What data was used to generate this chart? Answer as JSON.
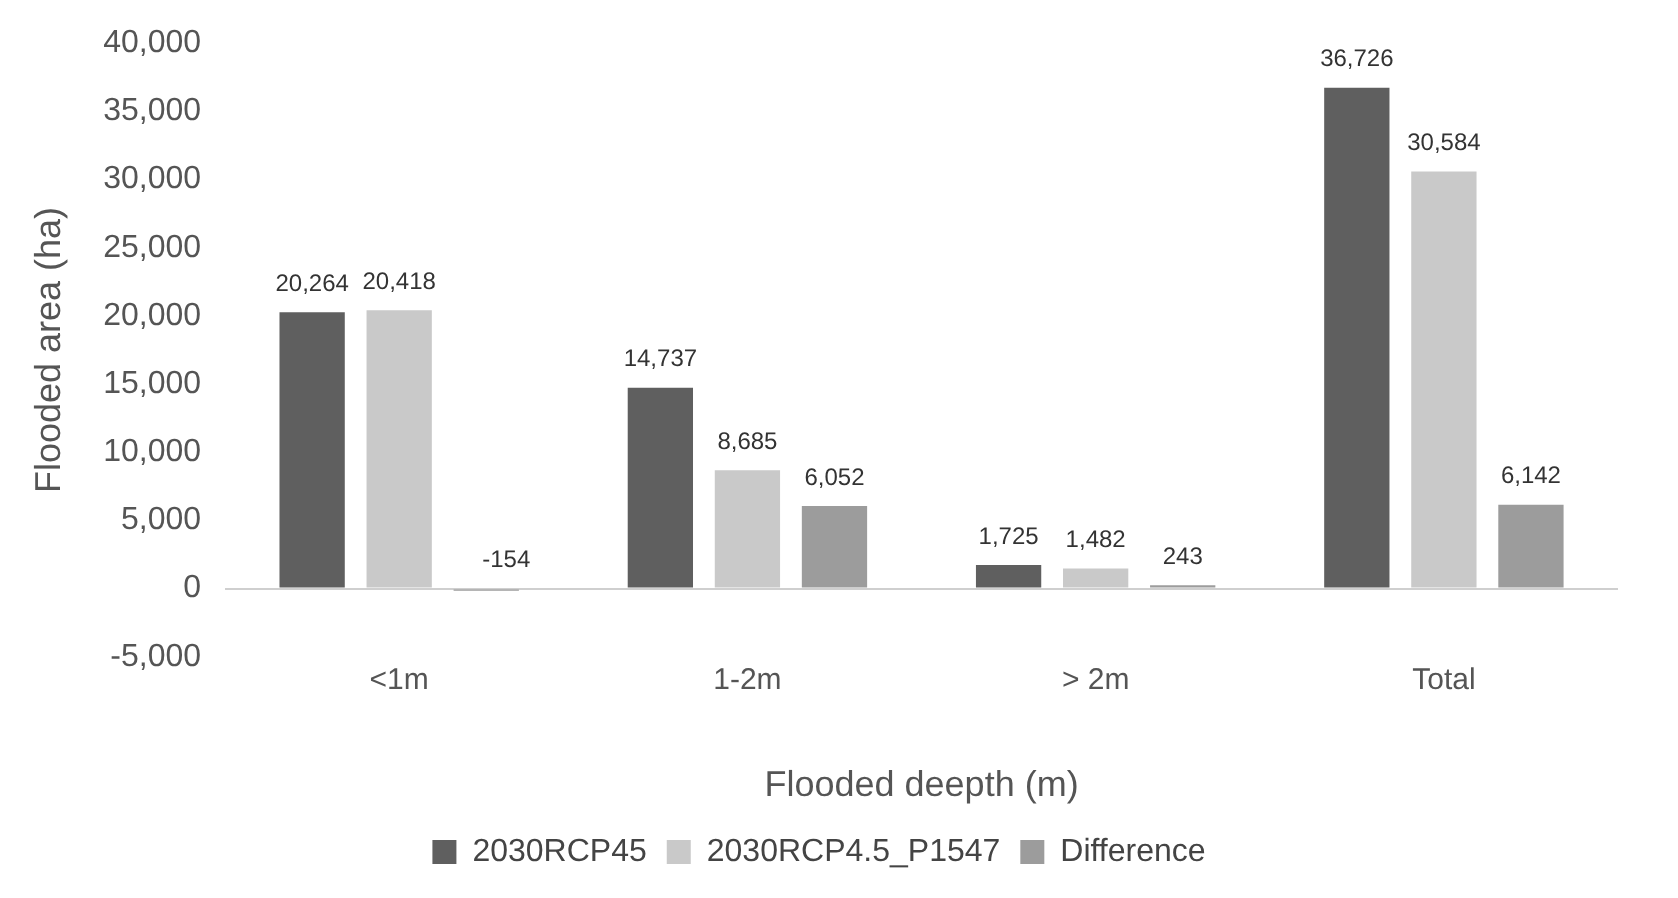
{
  "chart_data": {
    "type": "bar",
    "xlabel": "Flooded deepth (m)",
    "ylabel": "Flooded area (ha)",
    "categories": [
      "<1m",
      "1-2m",
      "> 2m",
      "Total"
    ],
    "series": [
      {
        "name": "2030RCP45",
        "color": "#5f5f5f",
        "values": [
          20264,
          14737,
          1725,
          36726
        ],
        "value_labels": [
          "20,264",
          "14,737",
          "1,725",
          "36,726"
        ]
      },
      {
        "name": "2030RCP4.5_P1547",
        "color": "#c9c9c9",
        "values": [
          20418,
          8685,
          1482,
          30584
        ],
        "value_labels": [
          "20,418",
          "8,685",
          "1,482",
          "30,584"
        ]
      },
      {
        "name": "Difference",
        "color": "#9c9c9c",
        "values": [
          -154,
          6052,
          243,
          6142
        ],
        "value_labels": [
          "-154",
          "6,052",
          "243",
          "6,142"
        ]
      }
    ],
    "ylim": [
      -5000,
      40000
    ],
    "yticks": [
      {
        "value": -5000,
        "label": "-5,000"
      },
      0,
      {
        "value": 5000,
        "label": "5,000"
      },
      {
        "value": 10000,
        "label": "10,000"
      },
      {
        "value": 15000,
        "label": "15,000"
      },
      {
        "value": 20000,
        "label": "20,000"
      },
      {
        "value": 25000,
        "label": "25,000"
      },
      {
        "value": 30000,
        "label": "30,000"
      },
      {
        "value": 35000,
        "label": "35,000"
      },
      {
        "value": 40000,
        "label": "40,000"
      }
    ],
    "grid": false,
    "legend": "bottom"
  }
}
